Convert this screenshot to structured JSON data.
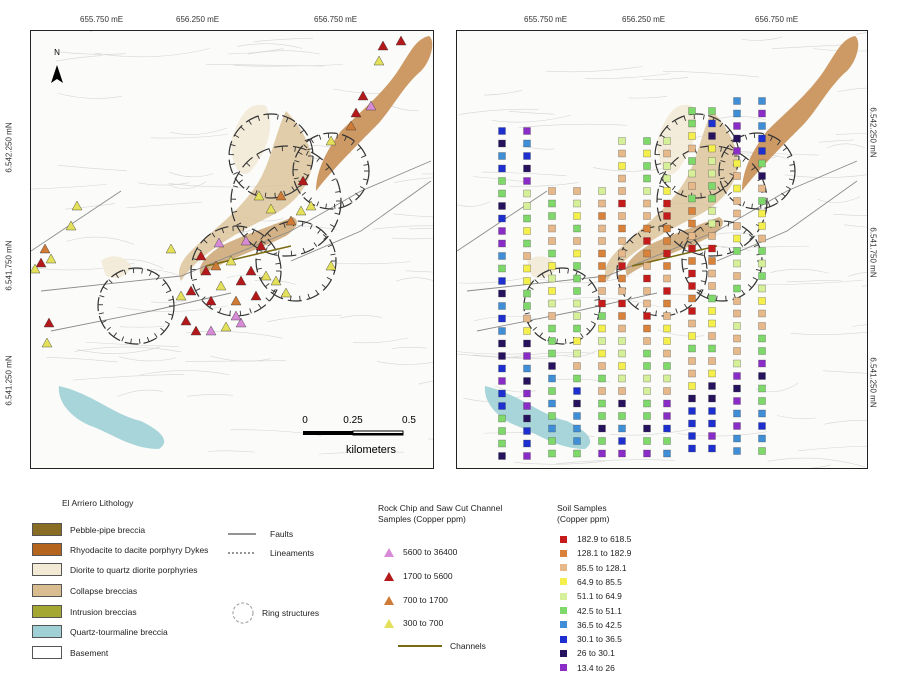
{
  "map": {
    "easting_labels": [
      "655.750 mE",
      "656.250 mE",
      "656.750 mE"
    ],
    "northing_left": [
      "6.542.250 mN",
      "6.541.750 mN",
      "6.541.250 mN"
    ],
    "northing_right": [
      "6.542.250 mN",
      "6.541.750 mN",
      "6.541.250 mN"
    ],
    "north_label": "N",
    "scale": {
      "ticks": [
        "0",
        "0.25",
        "0.5"
      ],
      "unit": "kilometers"
    }
  },
  "lithology": {
    "title": "El Arriero Lithology",
    "items": [
      {
        "label": "Pebble-pipe breccia",
        "color": "#8a6d25"
      },
      {
        "label": "Rhyodacite to dacite porphyry Dykes",
        "color": "#b5641e"
      },
      {
        "label": "Diorite to quartz diorite porphyries",
        "color": "#f3ead6"
      },
      {
        "label": "Collapse breccias",
        "color": "#d9bd90"
      },
      {
        "label": "Intrusion breccias",
        "color": "#a4a832"
      },
      {
        "label": "Quartz-tourmaline breccia",
        "color": "#9fd0d6"
      },
      {
        "label": "Basement",
        "color": "#ffffff"
      }
    ]
  },
  "structures": {
    "faults": "Faults",
    "lineaments": "Lineaments",
    "rings": "Ring structures"
  },
  "rock_chip": {
    "title_line1": "Rock Chip and Saw Cut Channel",
    "title_line2": "Samples (Copper ppm)",
    "items": [
      {
        "label": "5600 to 36400",
        "color": "#d78ad6"
      },
      {
        "label": "1700 to 5600",
        "color": "#b3191b"
      },
      {
        "label": "700 to 1700",
        "color": "#cf7a35"
      },
      {
        "label": "300 to 700",
        "color": "#e4e05a"
      }
    ],
    "channels_label": "Channels",
    "channels_color": "#7a6a10"
  },
  "soil": {
    "title_line1": "Soil Samples",
    "title_line2": "(Copper ppm)",
    "items": [
      {
        "label": "182.9 to 618.5",
        "color": "#c51b1b"
      },
      {
        "label": "128.1 to 182.9",
        "color": "#d9823a"
      },
      {
        "label": "85.5 to 128.1",
        "color": "#e7b98a"
      },
      {
        "label": "64.9 to 85.5",
        "color": "#f4ef4a"
      },
      {
        "label": "51.1 to 64.9",
        "color": "#d6f09a"
      },
      {
        "label": "42.5 to 51.1",
        "color": "#7fd96a"
      },
      {
        "label": "36.5 to 42.5",
        "color": "#3f8ed6"
      },
      {
        "label": "30.1 to 36.5",
        "color": "#1d2fcf"
      },
      {
        "label": "26 to 30.1",
        "color": "#27125e"
      },
      {
        "label": "13.4 to 26",
        "color": "#8a2dc6"
      }
    ]
  }
}
